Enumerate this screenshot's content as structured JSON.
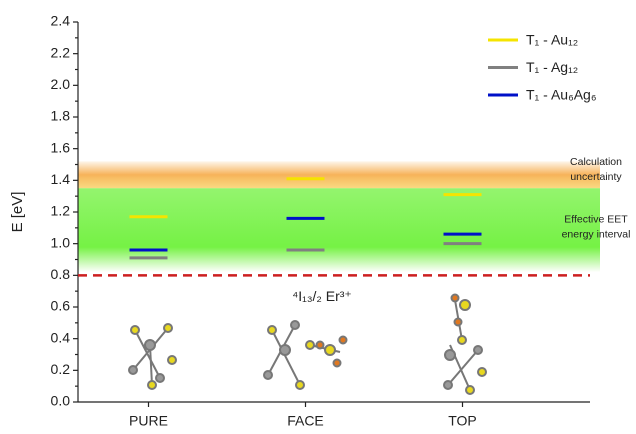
{
  "chart_data": {
    "type": "level",
    "y_label": "E [eV]",
    "categories": [
      "PURE",
      "FACE",
      "TOP"
    ],
    "series": [
      {
        "name": "T₁ - Au₁₂",
        "color": "#f5e400",
        "values": [
          1.17,
          1.41,
          1.31
        ]
      },
      {
        "name": "T₁ - Ag₁₂",
        "color": "#808080",
        "values": [
          0.91,
          0.96,
          1.0
        ]
      },
      {
        "name": "T₁ - Au₆Ag₆",
        "color": "#0010c8",
        "values": [
          0.96,
          1.16,
          1.06
        ]
      }
    ],
    "ylim": [
      0,
      2.4
    ],
    "yticks": [
      {
        "value": 0,
        "label": "0.0"
      },
      0.2,
      0.4,
      0.6,
      0.8,
      {
        "value": 1,
        "label": "1.0"
      },
      1.2,
      1.4,
      1.6,
      1.8,
      {
        "value": 2,
        "label": "2.0"
      },
      2.2,
      2.4
    ],
    "minor_yticks": [
      0.1,
      0.3,
      0.5,
      0.7,
      0.9,
      1.1,
      1.3,
      1.5,
      1.7,
      1.9,
      2.1,
      2.3
    ],
    "shaded_regions": [
      {
        "label_lines": [
          "Calculation",
          "uncertainty"
        ],
        "range": [
          1.35,
          1.52
        ],
        "color": "#f5a030"
      },
      {
        "label_lines": [
          "Effective EET",
          "energy interval"
        ],
        "range": [
          0.82,
          1.35
        ],
        "color": "#66f030"
      }
    ],
    "reference_line": {
      "value": 0.8,
      "color": "#cc1f1f",
      "label": "⁴I₁₃/₂ Er³⁺"
    },
    "legend": "upper right"
  }
}
